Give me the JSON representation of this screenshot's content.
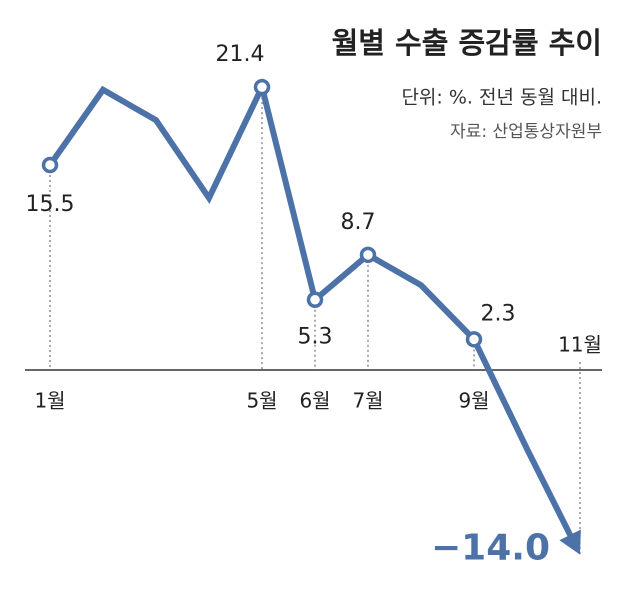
{
  "chart_data": {
    "type": "line",
    "title": "월별 수출 증감률 추이",
    "subtitle": "단위: %. 전년 동월 대비.",
    "source": "자료: 산업통상자원부",
    "categories": [
      "1월",
      null,
      null,
      null,
      "5월",
      "6월",
      "7월",
      null,
      "9월",
      null,
      "11월"
    ],
    "values": [
      15.5,
      21.2,
      18.9,
      13.0,
      21.4,
      5.3,
      8.7,
      6.4,
      2.3,
      -6.0,
      -14.0
    ],
    "value_labels": [
      "15.5",
      null,
      null,
      null,
      "21.4",
      "5.3",
      "8.7",
      null,
      "2.3",
      null,
      "−14.0"
    ],
    "color": "#4d72a8",
    "ylim": [
      -16,
      23
    ]
  }
}
